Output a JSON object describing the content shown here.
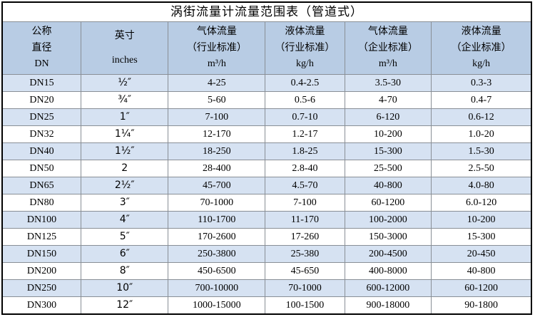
{
  "title": "涡街流量计流量范围表（管道式）",
  "header": {
    "columns": [
      {
        "id": "dn",
        "lines": [
          "公称",
          "直径",
          "DN"
        ]
      },
      {
        "id": "inches",
        "lines": [
          "英寸",
          "inches"
        ]
      },
      {
        "id": "gas_industry",
        "lines": [
          "气体流量",
          "（行业标准）",
          "m³/h"
        ]
      },
      {
        "id": "liquid_industry",
        "lines": [
          "液体流量",
          "（行业标准）",
          "kg/h"
        ]
      },
      {
        "id": "gas_enterprise",
        "lines": [
          "气体流量",
          "（企业标准）",
          "m³/h"
        ]
      },
      {
        "id": "liquid_enterprise",
        "lines": [
          "液体流量",
          "（企业标准）",
          "kg/h"
        ]
      }
    ]
  },
  "rows": [
    {
      "dn": "DN15",
      "inches": "½″",
      "gas_industry": "4-25",
      "liquid_industry": "0.4-2.5",
      "gas_enterprise": "3.5-30",
      "liquid_enterprise": "0.3-3"
    },
    {
      "dn": "DN20",
      "inches": "¾″",
      "gas_industry": "5-60",
      "liquid_industry": "0.5-6",
      "gas_enterprise": "4-70",
      "liquid_enterprise": "0.4-7"
    },
    {
      "dn": "DN25",
      "inches": "1″",
      "gas_industry": "7-100",
      "liquid_industry": "0.7-10",
      "gas_enterprise": "6-120",
      "liquid_enterprise": "0.6-12"
    },
    {
      "dn": "DN32",
      "inches": "1¼″",
      "gas_industry": "12-170",
      "liquid_industry": "1.2-17",
      "gas_enterprise": "10-200",
      "liquid_enterprise": "1.0-20"
    },
    {
      "dn": "DN40",
      "inches": "1½″",
      "gas_industry": "18-250",
      "liquid_industry": "1.8-25",
      "gas_enterprise": "15-300",
      "liquid_enterprise": "1.5-30"
    },
    {
      "dn": "DN50",
      "inches": "2",
      "gas_industry": "28-400",
      "liquid_industry": "2.8-40",
      "gas_enterprise": "25-500",
      "liquid_enterprise": "2.5-50"
    },
    {
      "dn": "DN65",
      "inches": "2½″",
      "gas_industry": "45-700",
      "liquid_industry": "4.5-70",
      "gas_enterprise": "40-800",
      "liquid_enterprise": "4.0-80"
    },
    {
      "dn": "DN80",
      "inches": "3″",
      "gas_industry": "70-1000",
      "liquid_industry": "7-100",
      "gas_enterprise": "60-1200",
      "liquid_enterprise": "6.0-120"
    },
    {
      "dn": "DN100",
      "inches": "4″",
      "gas_industry": "110-1700",
      "liquid_industry": "11-170",
      "gas_enterprise": "100-2000",
      "liquid_enterprise": "10-200"
    },
    {
      "dn": "DN125",
      "inches": "5″",
      "gas_industry": "170-2600",
      "liquid_industry": "17-260",
      "gas_enterprise": "150-3000",
      "liquid_enterprise": "15-300"
    },
    {
      "dn": "DN150",
      "inches": "6″",
      "gas_industry": "250-3800",
      "liquid_industry": "25-380",
      "gas_enterprise": "200-4500",
      "liquid_enterprise": "20-450"
    },
    {
      "dn": "DN200",
      "inches": "8″",
      "gas_industry": "450-6500",
      "liquid_industry": "45-650",
      "gas_enterprise": "400-8000",
      "liquid_enterprise": "40-800"
    },
    {
      "dn": "DN250",
      "inches": "10″",
      "gas_industry": "700-10000",
      "liquid_industry": "70-1000",
      "gas_enterprise": "600-12000",
      "liquid_enterprise": "60-1200"
    },
    {
      "dn": "DN300",
      "inches": "12″",
      "gas_industry": "1000-15000",
      "liquid_industry": "100-1500",
      "gas_enterprise": "900-18000",
      "liquid_enterprise": "90-1800"
    }
  ],
  "colors": {
    "header_bg": "#b8cce4",
    "band_bg": "#d6e2f2",
    "grid_line": "#898f96",
    "outer_border": "#000000",
    "text": "#000000"
  }
}
